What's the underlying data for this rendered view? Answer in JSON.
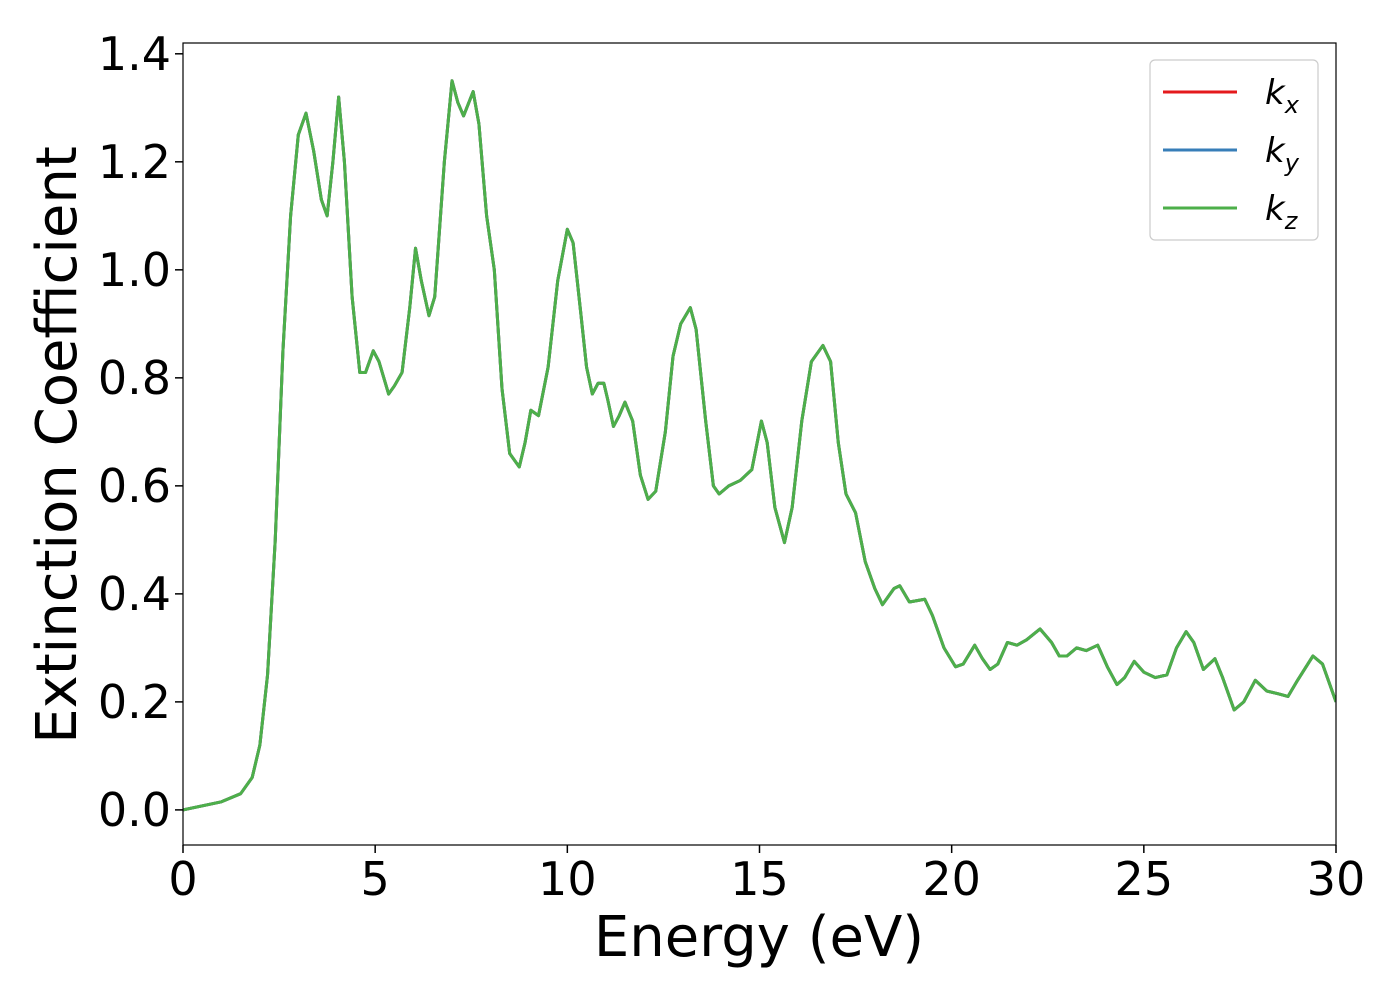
{
  "chart_data": {
    "type": "line",
    "xlabel": "Energy (eV)",
    "ylabel": "Extinction Coefficient",
    "xlim": [
      0,
      30
    ],
    "ylim": [
      -0.065,
      1.42
    ],
    "xticks": [
      0,
      5,
      10,
      15,
      20,
      25,
      30
    ],
    "yticks": [
      {
        "value": 0,
        "label": "0.0"
      },
      0.2,
      0.4,
      0.6,
      0.8,
      {
        "value": 1,
        "label": "1.0"
      },
      1.2,
      1.4
    ],
    "grid": false,
    "legend": "upper right",
    "x": [
      0,
      1,
      1.5,
      1.8,
      2.0,
      2.2,
      2.4,
      2.6,
      2.8,
      3.0,
      3.2,
      3.4,
      3.6,
      3.75,
      3.9,
      4.05,
      4.2,
      4.4,
      4.6,
      4.75,
      4.95,
      5.1,
      5.35,
      5.5,
      5.7,
      5.9,
      6.05,
      6.2,
      6.4,
      6.55,
      6.8,
      7.0,
      7.15,
      7.3,
      7.55,
      7.7,
      7.9,
      8.1,
      8.3,
      8.5,
      8.75,
      8.9,
      9.05,
      9.25,
      9.5,
      9.75,
      10.0,
      10.15,
      10.35,
      10.5,
      10.65,
      10.8,
      10.95,
      11.05,
      11.2,
      11.35,
      11.5,
      11.7,
      11.9,
      12.1,
      12.3,
      12.55,
      12.75,
      12.95,
      13.2,
      13.35,
      13.6,
      13.8,
      13.95,
      14.2,
      14.5,
      14.8,
      15.05,
      15.2,
      15.4,
      15.65,
      15.85,
      16.1,
      16.35,
      16.65,
      16.85,
      17.05,
      17.25,
      17.5,
      17.75,
      18.0,
      18.2,
      18.5,
      18.65,
      18.9,
      19.3,
      19.5,
      19.8,
      20.1,
      20.3,
      20.6,
      20.8,
      21.0,
      21.2,
      21.45,
      21.7,
      21.95,
      22.3,
      22.6,
      22.8,
      23.0,
      23.25,
      23.5,
      23.8,
      24.05,
      24.3,
      24.5,
      24.75,
      25.0,
      25.3,
      25.6,
      25.85,
      26.1,
      26.3,
      26.55,
      26.85,
      27.05,
      27.35,
      27.6,
      27.9,
      28.2,
      28.5,
      28.75,
      29.0,
      29.4,
      29.65,
      30.0
    ],
    "series": [
      {
        "name": "kx",
        "color": "#e41a1c",
        "values": [
          0,
          0.015,
          0.03,
          0.06,
          0.12,
          0.25,
          0.5,
          0.85,
          1.1,
          1.25,
          1.29,
          1.22,
          1.13,
          1.1,
          1.2,
          1.32,
          1.2,
          0.95,
          0.81,
          0.81,
          0.85,
          0.83,
          0.77,
          0.785,
          0.81,
          0.93,
          1.04,
          0.98,
          0.915,
          0.95,
          1.2,
          1.35,
          1.31,
          1.285,
          1.33,
          1.27,
          1.1,
          1.0,
          0.78,
          0.66,
          0.635,
          0.68,
          0.74,
          0.73,
          0.82,
          0.98,
          1.075,
          1.05,
          0.92,
          0.82,
          0.77,
          0.79,
          0.79,
          0.76,
          0.71,
          0.73,
          0.755,
          0.72,
          0.62,
          0.575,
          0.59,
          0.7,
          0.84,
          0.9,
          0.93,
          0.89,
          0.72,
          0.6,
          0.585,
          0.6,
          0.61,
          0.63,
          0.72,
          0.68,
          0.56,
          0.495,
          0.56,
          0.72,
          0.83,
          0.86,
          0.83,
          0.68,
          0.585,
          0.55,
          0.46,
          0.41,
          0.38,
          0.41,
          0.415,
          0.385,
          0.39,
          0.36,
          0.3,
          0.265,
          0.27,
          0.305,
          0.28,
          0.26,
          0.27,
          0.31,
          0.305,
          0.315,
          0.335,
          0.31,
          0.285,
          0.285,
          0.3,
          0.295,
          0.305,
          0.265,
          0.232,
          0.245,
          0.275,
          0.255,
          0.245,
          0.25,
          0.3,
          0.33,
          0.31,
          0.26,
          0.28,
          0.245,
          0.185,
          0.2,
          0.24,
          0.22,
          0.215,
          0.21,
          0.24,
          0.285,
          0.27,
          0.2
        ]
      },
      {
        "name": "ky",
        "color": "#377eb8",
        "values": [
          0,
          0.015,
          0.03,
          0.06,
          0.12,
          0.25,
          0.5,
          0.85,
          1.1,
          1.25,
          1.29,
          1.22,
          1.13,
          1.1,
          1.2,
          1.32,
          1.2,
          0.95,
          0.81,
          0.81,
          0.85,
          0.83,
          0.77,
          0.785,
          0.81,
          0.93,
          1.04,
          0.98,
          0.915,
          0.95,
          1.2,
          1.35,
          1.31,
          1.285,
          1.33,
          1.27,
          1.1,
          1.0,
          0.78,
          0.66,
          0.635,
          0.68,
          0.74,
          0.73,
          0.82,
          0.98,
          1.075,
          1.05,
          0.92,
          0.82,
          0.77,
          0.79,
          0.79,
          0.76,
          0.71,
          0.73,
          0.755,
          0.72,
          0.62,
          0.575,
          0.59,
          0.7,
          0.84,
          0.9,
          0.93,
          0.89,
          0.72,
          0.6,
          0.585,
          0.6,
          0.61,
          0.63,
          0.72,
          0.68,
          0.56,
          0.495,
          0.56,
          0.72,
          0.83,
          0.86,
          0.83,
          0.68,
          0.585,
          0.55,
          0.46,
          0.41,
          0.38,
          0.41,
          0.415,
          0.385,
          0.39,
          0.36,
          0.3,
          0.265,
          0.27,
          0.305,
          0.28,
          0.26,
          0.27,
          0.31,
          0.305,
          0.315,
          0.335,
          0.31,
          0.285,
          0.285,
          0.3,
          0.295,
          0.305,
          0.265,
          0.232,
          0.245,
          0.275,
          0.255,
          0.245,
          0.25,
          0.3,
          0.33,
          0.31,
          0.26,
          0.28,
          0.245,
          0.185,
          0.2,
          0.24,
          0.22,
          0.215,
          0.21,
          0.24,
          0.285,
          0.27,
          0.2
        ]
      },
      {
        "name": "kz",
        "color": "#4daf4a",
        "values": [
          0,
          0.015,
          0.03,
          0.06,
          0.12,
          0.25,
          0.5,
          0.85,
          1.1,
          1.25,
          1.29,
          1.22,
          1.13,
          1.1,
          1.2,
          1.32,
          1.2,
          0.95,
          0.81,
          0.81,
          0.85,
          0.83,
          0.77,
          0.785,
          0.81,
          0.93,
          1.04,
          0.98,
          0.915,
          0.95,
          1.2,
          1.35,
          1.31,
          1.285,
          1.33,
          1.27,
          1.1,
          1.0,
          0.78,
          0.66,
          0.635,
          0.68,
          0.74,
          0.73,
          0.82,
          0.98,
          1.075,
          1.05,
          0.92,
          0.82,
          0.77,
          0.79,
          0.79,
          0.76,
          0.71,
          0.73,
          0.755,
          0.72,
          0.62,
          0.575,
          0.59,
          0.7,
          0.84,
          0.9,
          0.93,
          0.89,
          0.72,
          0.6,
          0.585,
          0.6,
          0.61,
          0.63,
          0.72,
          0.68,
          0.56,
          0.495,
          0.56,
          0.72,
          0.83,
          0.86,
          0.83,
          0.68,
          0.585,
          0.55,
          0.46,
          0.41,
          0.38,
          0.41,
          0.415,
          0.385,
          0.39,
          0.36,
          0.3,
          0.265,
          0.27,
          0.305,
          0.28,
          0.26,
          0.27,
          0.31,
          0.305,
          0.315,
          0.335,
          0.31,
          0.285,
          0.285,
          0.3,
          0.295,
          0.305,
          0.265,
          0.232,
          0.245,
          0.275,
          0.255,
          0.245,
          0.25,
          0.3,
          0.33,
          0.31,
          0.26,
          0.28,
          0.245,
          0.185,
          0.2,
          0.24,
          0.22,
          0.215,
          0.21,
          0.24,
          0.285,
          0.27,
          0.2
        ]
      }
    ]
  }
}
